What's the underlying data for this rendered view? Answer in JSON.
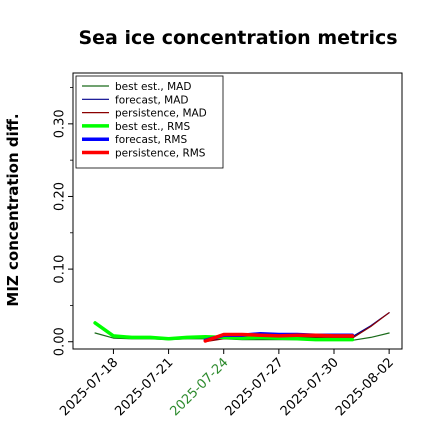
{
  "chart_data": {
    "type": "line",
    "title": "Sea ice concentration metrics",
    "xlabel": "",
    "ylabel": "MIZ concentration diff.",
    "ylim": [
      -0.01,
      0.37
    ],
    "x_ticks": [
      {
        "label": "2025-07-18",
        "color": "#000000"
      },
      {
        "label": "2025-07-21",
        "color": "#000000"
      },
      {
        "label": "2025-07-24",
        "color": "#2e8b2e"
      },
      {
        "label": "2025-07-27",
        "color": "#000000"
      },
      {
        "label": "2025-07-30",
        "color": "#000000"
      },
      {
        "label": "2025-08-02",
        "color": "#000000"
      }
    ],
    "y_ticks": [
      0.0,
      0.1,
      0.2,
      0.3
    ],
    "y_tick_labels": [
      "0.00",
      "0.10",
      "0.20",
      "0.30"
    ],
    "legend_placement": "upper-left",
    "grid": false,
    "series": [
      {
        "name": "best est., MAD",
        "color": "#1a6b1a",
        "width": 1.2,
        "x": [
          "2025-07-17",
          "2025-07-18",
          "2025-07-19",
          "2025-07-20",
          "2025-07-21",
          "2025-07-22",
          "2025-07-23",
          "2025-07-24",
          "2025-07-25",
          "2025-07-26",
          "2025-07-27",
          "2025-07-28",
          "2025-07-29",
          "2025-07-30",
          "2025-07-31",
          "2025-08-01",
          "2025-08-02"
        ],
        "y": [
          0.012,
          0.005,
          0.004,
          0.004,
          0.003,
          0.004,
          0.004,
          0.004,
          0.003,
          0.003,
          0.003,
          0.003,
          0.002,
          0.002,
          0.002,
          0.006,
          0.012
        ]
      },
      {
        "name": "forecast,  MAD",
        "color": "#00008b",
        "width": 1.2,
        "x": [
          "2025-07-23",
          "2025-07-24",
          "2025-07-25",
          "2025-07-26",
          "2025-07-27",
          "2025-07-28",
          "2025-07-29",
          "2025-07-30",
          "2025-07-31",
          "2025-08-01",
          "2025-08-02"
        ],
        "y": [
          0.001,
          0.005,
          0.006,
          0.007,
          0.007,
          0.008,
          0.007,
          0.007,
          0.007,
          0.022,
          0.04
        ]
      },
      {
        "name": "persistence, MAD",
        "color": "#8b0000",
        "width": 1.2,
        "x": [
          "2025-07-23",
          "2025-07-24",
          "2025-07-25",
          "2025-07-26",
          "2025-07-27",
          "2025-07-28",
          "2025-07-29",
          "2025-07-30",
          "2025-07-31",
          "2025-08-01",
          "2025-08-02"
        ],
        "y": [
          0.0,
          0.004,
          0.004,
          0.005,
          0.006,
          0.006,
          0.006,
          0.005,
          0.005,
          0.021,
          0.04
        ]
      },
      {
        "name": "best est., RMS",
        "color": "#00ff00",
        "width": 3.5,
        "x": [
          "2025-07-17",
          "2025-07-18",
          "2025-07-19",
          "2025-07-20",
          "2025-07-21",
          "2025-07-22",
          "2025-07-23",
          "2025-07-24",
          "2025-07-25",
          "2025-07-26",
          "2025-07-27",
          "2025-07-28",
          "2025-07-29",
          "2025-07-30",
          "2025-07-31"
        ],
        "y": [
          0.026,
          0.008,
          0.006,
          0.006,
          0.004,
          0.006,
          0.007,
          0.006,
          0.005,
          0.006,
          0.005,
          0.004,
          0.003,
          0.003,
          0.003
        ]
      },
      {
        "name": "forecast,  RMS",
        "color": "#0000ff",
        "width": 3.5,
        "x": [
          "2025-07-23",
          "2025-07-24",
          "2025-07-25",
          "2025-07-26",
          "2025-07-27",
          "2025-07-28",
          "2025-07-29",
          "2025-07-30",
          "2025-07-31"
        ],
        "y": [
          0.002,
          0.009,
          0.009,
          0.011,
          0.01,
          0.01,
          0.009,
          0.009,
          0.009
        ]
      },
      {
        "name": "persistence, RMS",
        "color": "#ff0000",
        "width": 3.5,
        "x": [
          "2025-07-23",
          "2025-07-24",
          "2025-07-25",
          "2025-07-26",
          "2025-07-27",
          "2025-07-28",
          "2025-07-29",
          "2025-07-30",
          "2025-07-31"
        ],
        "y": [
          0.001,
          0.01,
          0.01,
          0.009,
          0.008,
          0.009,
          0.009,
          0.008,
          0.008
        ]
      }
    ]
  }
}
